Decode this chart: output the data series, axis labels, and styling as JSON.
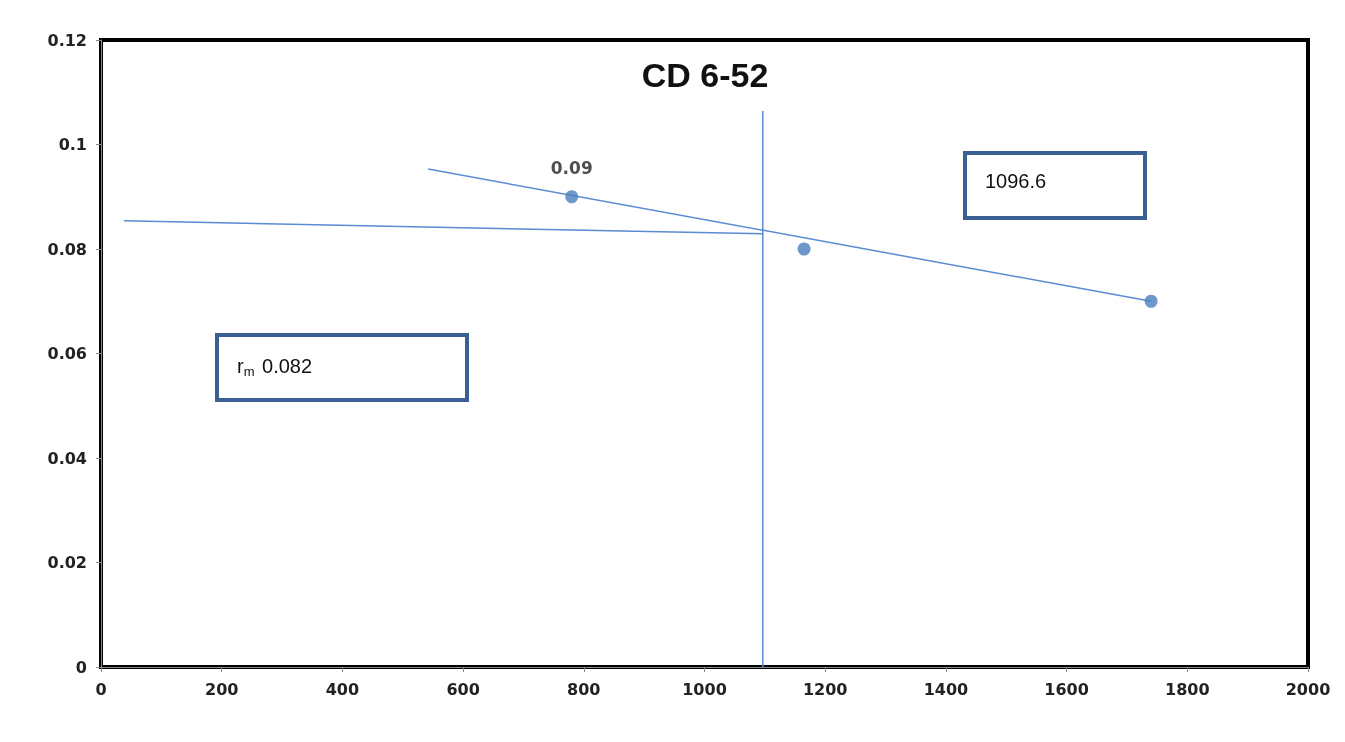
{
  "chart_data": {
    "type": "scatter",
    "title": "CD 6-52",
    "x": [
      780,
      1165,
      1740
    ],
    "values": [
      0.09,
      0.08,
      0.07
    ],
    "value_labels": [
      "0.09",
      null,
      null
    ],
    "color": "#4a7ebf",
    "marker": "circle",
    "series": [
      {
        "type": "line",
        "x": [
          542,
          1740
        ],
        "values": [
          0.0953,
          0.07
        ],
        "color": "#5b8bd0",
        "marker": "none"
      },
      {
        "type": "line",
        "x": [
          38,
          1096.6
        ],
        "values": [
          0.0854,
          0.0829
        ],
        "color": "#5b8bd0",
        "marker": "none"
      },
      {
        "type": "line",
        "x": [
          1096.6,
          1096.6
        ],
        "values": [
          0,
          0.1064
        ],
        "color": "#5b8bd0",
        "marker": "none"
      }
    ],
    "annotations": [
      "1096.6",
      "r$_{m}$ 0.082"
    ],
    "xlim": [
      0,
      2000
    ],
    "xticks": [
      0,
      200,
      400,
      600,
      800,
      1000,
      1200,
      1400,
      1600,
      1800,
      2000
    ],
    "ylim": [
      0,
      0.12
    ],
    "yticks": [
      0,
      0.02,
      0.04,
      0.06,
      0.08,
      0.1,
      0.12
    ],
    "grid": false
  }
}
